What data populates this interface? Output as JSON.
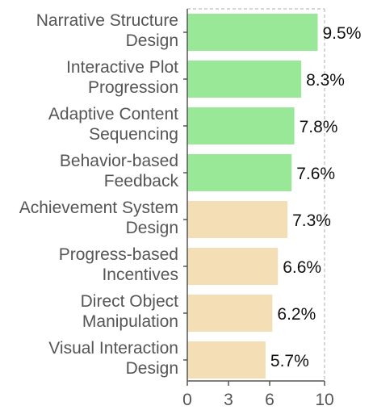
{
  "chart_data": {
    "type": "bar",
    "orientation": "horizontal",
    "categories": [
      [
        "Narrative Structure",
        "Design"
      ],
      [
        "Interactive Plot",
        "Progression"
      ],
      [
        "Adaptive Content",
        "Sequencing"
      ],
      [
        "Behavior-based",
        "Feedback"
      ],
      [
        "Achievement System",
        "Design"
      ],
      [
        "Progress-based",
        "Incentives"
      ],
      [
        "Direct Object",
        "Manipulation"
      ],
      [
        "Visual Interaction",
        "Design"
      ]
    ],
    "values": [
      9.5,
      8.3,
      7.8,
      7.6,
      7.3,
      6.6,
      6.2,
      5.7
    ],
    "value_labels": [
      "9.5%",
      "8.3%",
      "7.8%",
      "7.6%",
      "7.3%",
      "6.6%",
      "6.2%",
      "5.7%"
    ],
    "bar_colors": [
      "#98e898",
      "#98e898",
      "#98e898",
      "#98e898",
      "#f3deb6",
      "#f3deb6",
      "#f3deb6",
      "#f3deb6"
    ],
    "xlim": [
      0,
      10
    ],
    "xticks": [
      0,
      3,
      6,
      10
    ],
    "xtick_labels": [
      "0",
      "3",
      "6",
      "10"
    ],
    "grid": "dashed border at top and right",
    "title": "",
    "xlabel": "",
    "ylabel": ""
  }
}
